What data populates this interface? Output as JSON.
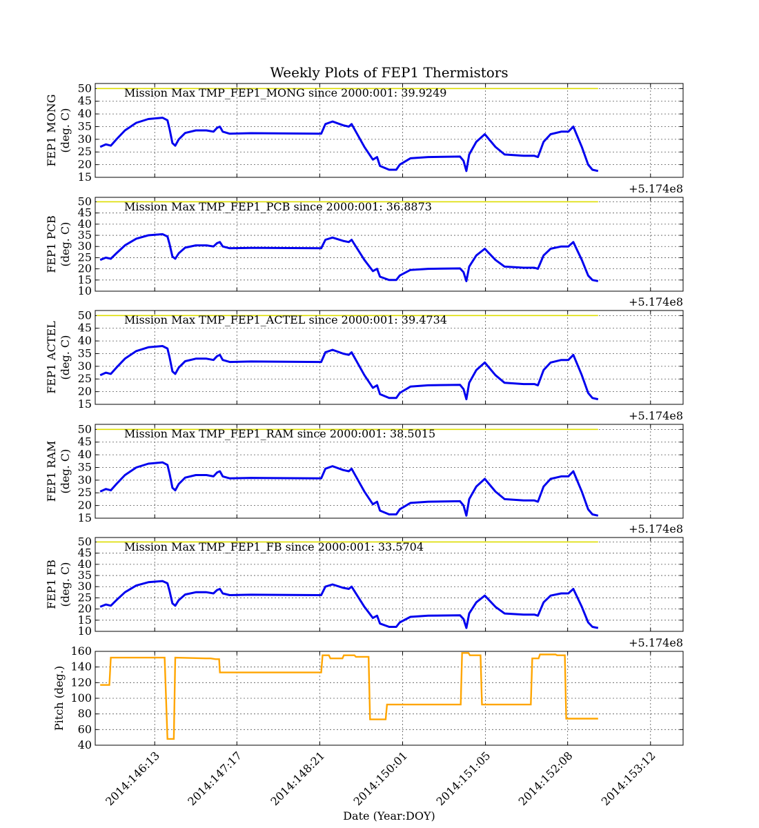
{
  "chart_data": {
    "title": "Weekly Plots of FEP1 Thermistors",
    "xlabel": "Date (Year:DOY)",
    "offset_label": "+5.174e8",
    "x_axis": {
      "range": [
        2014.1457,
        2014.154
      ],
      "ticks": [
        {
          "value": 2014.14654,
          "label": "2014:146:13"
        },
        {
          "value": 2014.1477,
          "label": "2014:147:17"
        },
        {
          "value": 2014.14887,
          "label": "2014:148:21"
        },
        {
          "value": 2014.15004,
          "label": "2014:150:01"
        },
        {
          "value": 2014.15121,
          "label": "2014:151:05"
        },
        {
          "value": 2014.15237,
          "label": "2014:152:08"
        },
        {
          "value": 2014.15354,
          "label": "2014:153:12"
        }
      ]
    },
    "panels": [
      {
        "type": "line",
        "ylabel": [
          "FEP1 MONG",
          "(deg. C)"
        ],
        "ylim": [
          15,
          52
        ],
        "yticks": [
          15,
          20,
          25,
          30,
          35,
          40,
          45,
          50
        ],
        "annotation": "Mission Max TMP_FEP1_MONG since 2000:001: 39.9249",
        "limit_line": 50,
        "color": "#0000ee",
        "offset": 0
      },
      {
        "type": "line",
        "ylabel": [
          "FEP1 PCB",
          "(deg. C)"
        ],
        "ylim": [
          10,
          52
        ],
        "yticks": [
          10,
          15,
          20,
          25,
          30,
          35,
          40,
          45,
          50
        ],
        "annotation": "Mission Max TMP_FEP1_PCB since 2000:001: 36.8873",
        "limit_line": 50,
        "color": "#0000ee",
        "offset": -3
      },
      {
        "type": "line",
        "ylabel": [
          "FEP1 ACTEL",
          "(deg. C)"
        ],
        "ylim": [
          15,
          52
        ],
        "yticks": [
          15,
          20,
          25,
          30,
          35,
          40,
          45,
          50
        ],
        "annotation": "Mission Max TMP_FEP1_ACTEL since 2000:001: 39.4734",
        "limit_line": 50,
        "color": "#0000ee",
        "offset": -0.5
      },
      {
        "type": "line",
        "ylabel": [
          "FEP1 RAM",
          "(deg. C)"
        ],
        "ylim": [
          15,
          52
        ],
        "yticks": [
          15,
          20,
          25,
          30,
          35,
          40,
          45,
          50
        ],
        "annotation": "Mission Max TMP_FEP1_RAM since 2000:001: 38.5015",
        "limit_line": 50,
        "color": "#0000ee",
        "offset": -1.5
      },
      {
        "type": "line",
        "ylabel": [
          "FEP1 FB",
          "(deg. C)"
        ],
        "ylim": [
          10,
          52
        ],
        "yticks": [
          10,
          15,
          20,
          25,
          30,
          35,
          40,
          45,
          50
        ],
        "annotation": "Mission Max TMP_FEP1_FB since 2000:001: 33.5704",
        "limit_line": 50,
        "color": "#0000ee",
        "offset": -6
      },
      {
        "type": "step",
        "ylabel": [
          "Pitch (deg.)"
        ],
        "ylim": [
          40,
          160
        ],
        "yticks": [
          40,
          60,
          80,
          100,
          120,
          140,
          160
        ],
        "annotation": "",
        "color": "#ffa500",
        "offset": 0
      }
    ],
    "temperature_base": [
      [
        2014.14577,
        27
      ],
      [
        2014.14585,
        28
      ],
      [
        2014.14592,
        27.5
      ],
      [
        2014.146,
        30
      ],
      [
        2014.14612,
        33.5
      ],
      [
        2014.14628,
        36.5
      ],
      [
        2014.14645,
        38
      ],
      [
        2014.14665,
        38.5
      ],
      [
        2014.14672,
        37.5
      ],
      [
        2014.14675,
        34
      ],
      [
        2014.14679,
        28.5
      ],
      [
        2014.14683,
        27.5
      ],
      [
        2014.14688,
        30
      ],
      [
        2014.14697,
        32.5
      ],
      [
        2014.14712,
        33.5
      ],
      [
        2014.14727,
        33.5
      ],
      [
        2014.14737,
        33
      ],
      [
        2014.14742,
        34.5
      ],
      [
        2014.14746,
        35
      ],
      [
        2014.1475,
        33
      ],
      [
        2014.1476,
        32.2
      ],
      [
        2014.1479,
        32.4
      ],
      [
        2014.14886,
        32.2
      ],
      [
        2014.14889,
        32.2
      ],
      [
        2014.14895,
        36
      ],
      [
        2014.14905,
        37
      ],
      [
        2014.1492,
        35.5
      ],
      [
        2014.14928,
        35
      ],
      [
        2014.14932,
        36
      ],
      [
        2014.14936,
        34
      ],
      [
        2014.1495,
        27
      ],
      [
        2014.14962,
        22
      ],
      [
        2014.14968,
        23
      ],
      [
        2014.14972,
        19.5
      ],
      [
        2014.14985,
        18
      ],
      [
        2014.14995,
        18
      ],
      [
        2014.15,
        20
      ],
      [
        2014.15015,
        22.5
      ],
      [
        2014.1504,
        23
      ],
      [
        2014.15085,
        23.2
      ],
      [
        2014.1509,
        21.5
      ],
      [
        2014.15094,
        17.5
      ],
      [
        2014.15098,
        24
      ],
      [
        2014.15108,
        29
      ],
      [
        2014.1512,
        32
      ],
      [
        2014.15135,
        27
      ],
      [
        2014.15148,
        24
      ],
      [
        2014.15175,
        23.5
      ],
      [
        2014.1519,
        23.5
      ],
      [
        2014.15195,
        23
      ],
      [
        2014.15203,
        29
      ],
      [
        2014.15213,
        32
      ],
      [
        2014.15228,
        33
      ],
      [
        2014.15238,
        33
      ],
      [
        2014.15245,
        35
      ],
      [
        2014.15257,
        27
      ],
      [
        2014.15266,
        20
      ],
      [
        2014.15272,
        18
      ],
      [
        2014.1528,
        17.5
      ]
    ],
    "pitch_steps": [
      [
        2014.14577,
        117
      ],
      [
        2014.1459,
        117
      ],
      [
        2014.14592,
        152
      ],
      [
        2014.14668,
        152
      ],
      [
        2014.14672,
        48
      ],
      [
        2014.14681,
        48
      ],
      [
        2014.14683,
        152
      ],
      [
        2014.14726,
        151
      ],
      [
        2014.14733,
        151
      ],
      [
        2014.1474,
        150
      ],
      [
        2014.14745,
        150
      ],
      [
        2014.14746,
        133
      ],
      [
        2014.14889,
        133
      ],
      [
        2014.14891,
        155
      ],
      [
        2014.149,
        155
      ],
      [
        2014.14902,
        151
      ],
      [
        2014.14919,
        151
      ],
      [
        2014.14921,
        155
      ],
      [
        2014.14936,
        155
      ],
      [
        2014.14938,
        153
      ],
      [
        2014.14956,
        153
      ],
      [
        2014.14958,
        73
      ],
      [
        2014.1498,
        73
      ],
      [
        2014.14982,
        92
      ],
      [
        2014.15086,
        92
      ],
      [
        2014.15088,
        158
      ],
      [
        2014.15097,
        158
      ],
      [
        2014.15099,
        155
      ],
      [
        2014.15114,
        155
      ],
      [
        2014.15116,
        92
      ],
      [
        2014.15185,
        92
      ],
      [
        2014.15187,
        151
      ],
      [
        2014.15196,
        151
      ],
      [
        2014.15198,
        156
      ],
      [
        2014.1522,
        156
      ],
      [
        2014.15222,
        155
      ],
      [
        2014.15233,
        155
      ],
      [
        2014.15235,
        74
      ],
      [
        2014.1528,
        74
      ]
    ]
  }
}
